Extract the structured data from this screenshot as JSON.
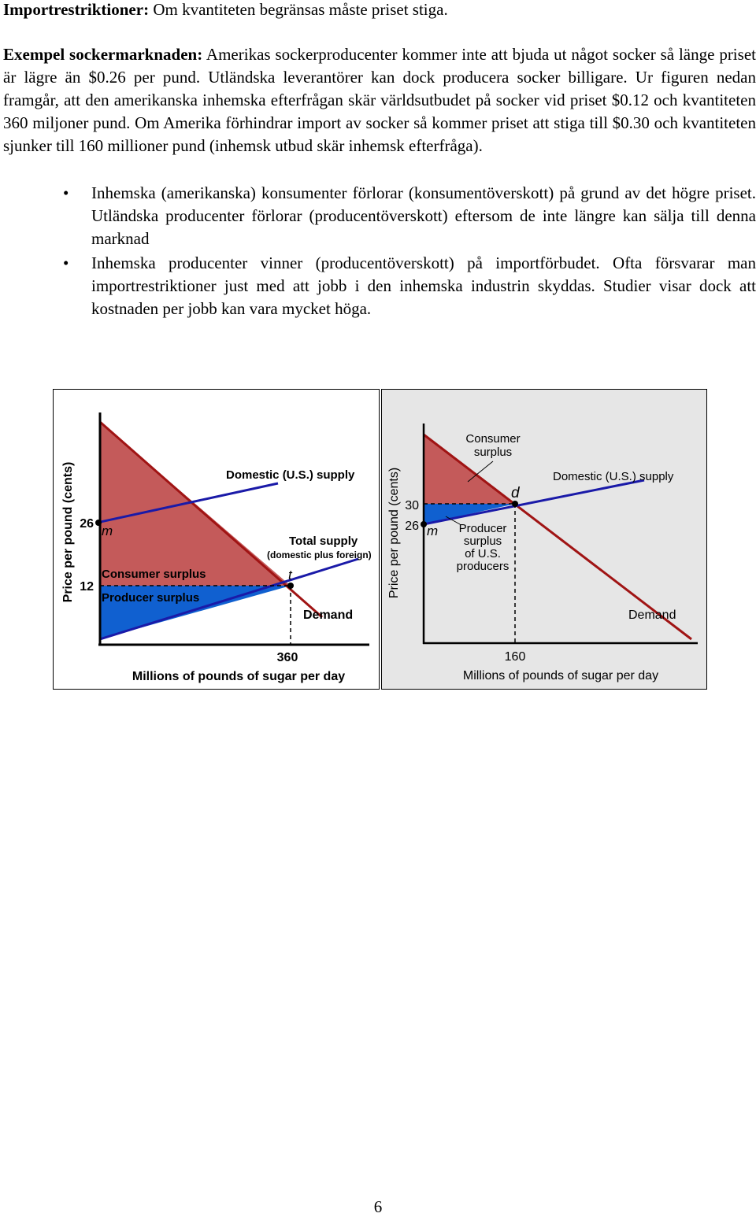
{
  "paragraph1": {
    "bold": "Importrestriktioner:",
    "text": " Om kvantiteten begränsas måste priset stiga."
  },
  "paragraph2": {
    "bold": "Exempel sockermarknaden:",
    "text": " Amerikas sockerproducenter kommer inte att bjuda ut något socker så länge priset är lägre än $0.26 per pund. Utländska leverantörer kan dock producera socker billigare. Ur figuren nedan framgår, att den amerikanska inhemska efterfrågan skär världsutbudet på socker vid priset $0.12 och kvantiteten 360 miljoner pund. Om Amerika förhindrar import av socker så kommer priset att stiga till $0.30 och kvantiteten sjunker till 160 millioner pund (inhemsk utbud skär inhemsk efterfråga)."
  },
  "bullets": [
    "Inhemska (amerikanska) konsumenter förlorar (konsumentöverskott) på grund av det högre priset. Utländska producenter förlorar (producentöverskott) eftersom de inte längre kan sälja till denna marknad",
    "Inhemska producenter vinner (producentöverskott) på importförbudet. Ofta försvarar man importrestriktioner just med att jobb i den inhemska industrin skyddas. Studier visar dock att kostnaden per jobb kan vara mycket höga."
  ],
  "bullet_symbol": "•",
  "chart_data": [
    {
      "type": "line",
      "ylabel": "Price per pound (cents)",
      "xlabel": "Millions of pounds of sugar per day",
      "x_ticks": [
        "360"
      ],
      "y_ticks": [
        "26",
        "12"
      ],
      "series": [
        {
          "name": "Domestic (U.S.) supply"
        },
        {
          "name": "Total supply"
        },
        {
          "name": "Demand"
        }
      ],
      "total_supply_note": "(domestic plus foreign)",
      "point_labels": [
        "m",
        "t"
      ],
      "areas": [
        "Consumer surplus",
        "Producer surplus"
      ],
      "values": {
        "domestic_supply_min_price": 26,
        "equilibrium_price": 12,
        "equilibrium_quantity": 360
      },
      "colors": {
        "consumer_surplus": "#c45a5a",
        "producer_surplus": "#1060d0",
        "supply_line": "#1a1aa8",
        "demand_line": "#a01414"
      }
    },
    {
      "type": "line",
      "ylabel": "Price per pound (cents)",
      "xlabel": "Millions of pounds of sugar per day",
      "x_ticks": [
        "160"
      ],
      "y_ticks": [
        "30",
        "26"
      ],
      "series": [
        {
          "name": "Domestic (U.S.) supply"
        },
        {
          "name": "Demand"
        }
      ],
      "point_labels": [
        "m",
        "d"
      ],
      "areas": [
        "Consumer surplus",
        "Producer surplus of U.S. producers"
      ],
      "consumer_label_lines": [
        "Consumer",
        "surplus"
      ],
      "producer_label_lines": [
        "Producer",
        "surplus",
        "of U.S.",
        "producers"
      ],
      "values": {
        "domestic_supply_min_price": 26,
        "equilibrium_price": 30,
        "equilibrium_quantity": 160
      },
      "colors": {
        "consumer_surplus": "#c45a5a",
        "producer_surplus": "#1060d0",
        "supply_line": "#1a1aa8",
        "demand_line": "#a01414",
        "background": "#e6e6e6"
      }
    }
  ],
  "page_number": "6"
}
